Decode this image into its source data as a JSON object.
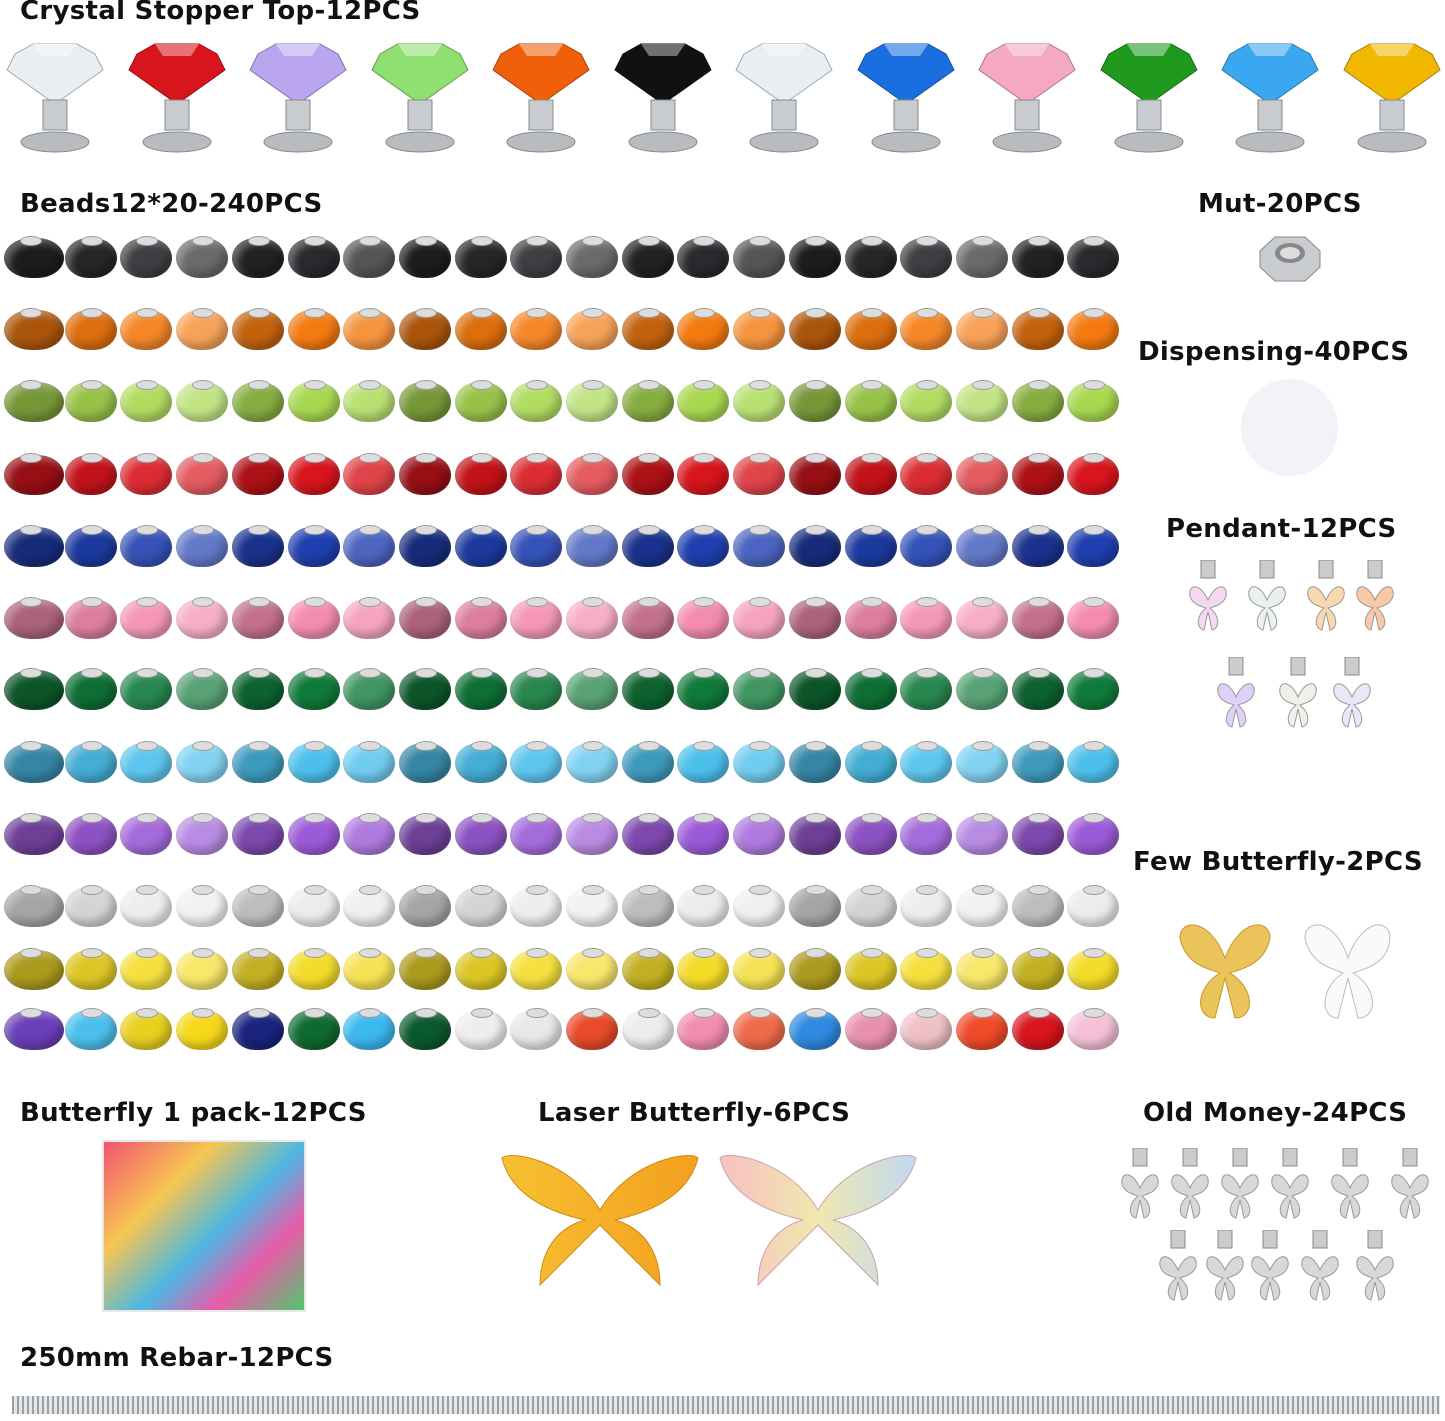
{
  "labels": {
    "crystal": "Crystal Stopper Top-12PCS",
    "beads": "Beads12*20-240PCS",
    "nut": "Mut-20PCS",
    "dispensing": "Dispensing-40PCS",
    "pendant": "Pendant-12PCS",
    "few_butterfly": "Few Butterfly-2PCS",
    "butterfly_pack": "Butterfly 1 pack-12PCS",
    "laser_butterfly": "Laser Butterfly-6PCS",
    "old_money": "Old Money-24PCS",
    "rebar": "250mm Rebar-12PCS"
  },
  "crystal_colors": [
    "#e8eef2",
    "#d8141c",
    "#b9a6ee",
    "#8fe070",
    "#f0600a",
    "#111111",
    "#e8eef2",
    "#1a6fe0",
    "#f4a8c4",
    "#1f9a1f",
    "#3aa8f0",
    "#f2b800"
  ],
  "bead_rows": [
    {
      "name": "black",
      "color": "#2a2a2e"
    },
    {
      "name": "orange",
      "color": "#f47a10"
    },
    {
      "name": "lime",
      "color": "#a8d850"
    },
    {
      "name": "red",
      "color": "#d8141c"
    },
    {
      "name": "blue",
      "color": "#1f3fb0"
    },
    {
      "name": "pink",
      "color": "#f48cb0"
    },
    {
      "name": "dark-green",
      "color": "#107a3a"
    },
    {
      "name": "light-blue",
      "color": "#4cc0ec"
    },
    {
      "name": "purple",
      "color": "#9b5ad8"
    },
    {
      "name": "white",
      "color": "#ececec"
    },
    {
      "name": "yellow",
      "color": "#f4dc2a"
    },
    {
      "name": "mixed",
      "colors": [
        "#6a3fb8",
        "#4cc0ec",
        "#e8d020",
        "#f6d81a",
        "#1a237e",
        "#0f6a30",
        "#3ab8f0",
        "#0b5a2e",
        "#eeeeee",
        "#e8e8e8",
        "#e84a2a",
        "#ececec",
        "#f28cb0",
        "#f06a4a",
        "#2f8ae0",
        "#e890b0",
        "#f0c0c8",
        "#f04a2a",
        "#d8141c",
        "#f4c0d8"
      ]
    }
  ],
  "accent_colors": {
    "nut": "#b8bcc0",
    "dispensing": "#f2f4f8",
    "silver": "#c8ccd0",
    "gold": "#e8c040"
  }
}
